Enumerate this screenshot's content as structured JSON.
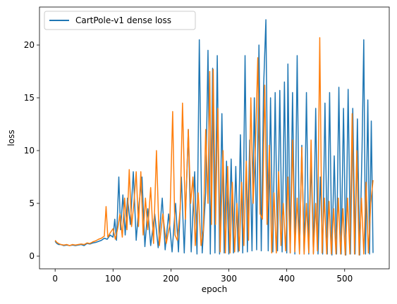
{
  "chart_data": {
    "type": "line",
    "xlabel": "epoch",
    "ylabel": "loss",
    "xlim": [
      -27,
      577
    ],
    "ylim": [
      -1.2,
      23.6
    ],
    "xticks": [
      0,
      100,
      200,
      300,
      400,
      500
    ],
    "yticks": [
      0,
      5,
      10,
      15,
      20
    ],
    "legend": {
      "placement": "top-left",
      "entries": [
        "CartPole-v1 dense  loss"
      ]
    },
    "grid": false,
    "colors": {
      "series_blue": "#1f77b4",
      "series_orange": "#ff7f0e"
    },
    "series": [
      {
        "name": "CartPole-v1 dense  loss",
        "color": "#1f77b4",
        "keypoints": [
          [
            0,
            1.4
          ],
          [
            3,
            1.2
          ],
          [
            6,
            1.1
          ],
          [
            10,
            1.1
          ],
          [
            15,
            1.0
          ],
          [
            20,
            1.05
          ],
          [
            25,
            1.0
          ],
          [
            30,
            1.05
          ],
          [
            35,
            1.0
          ],
          [
            40,
            1.05
          ],
          [
            45,
            1.1
          ],
          [
            50,
            1.0
          ],
          [
            55,
            1.2
          ],
          [
            60,
            1.15
          ],
          [
            65,
            1.25
          ],
          [
            70,
            1.3
          ],
          [
            75,
            1.4
          ],
          [
            80,
            1.5
          ],
          [
            85,
            1.7
          ],
          [
            90,
            1.6
          ],
          [
            95,
            2.0
          ],
          [
            100,
            1.8
          ],
          [
            103,
            3.5
          ],
          [
            106,
            1.5
          ],
          [
            110,
            7.5
          ],
          [
            113,
            2.5
          ],
          [
            117,
            5.8
          ],
          [
            121,
            2.0
          ],
          [
            125,
            5.5
          ],
          [
            130,
            3.0
          ],
          [
            135,
            8.0
          ],
          [
            140,
            1.5
          ],
          [
            145,
            5.0
          ],
          [
            150,
            7.5
          ],
          [
            155,
            0.9
          ],
          [
            160,
            4.5
          ],
          [
            165,
            1.0
          ],
          [
            172,
            4.0
          ],
          [
            178,
            0.8
          ],
          [
            185,
            5.5
          ],
          [
            190,
            0.6
          ],
          [
            196,
            4.0
          ],
          [
            202,
            0.4
          ],
          [
            208,
            5.0
          ],
          [
            213,
            0.4
          ],
          [
            218,
            7.5
          ],
          [
            223,
            0.3
          ],
          [
            230,
            12.0
          ],
          [
            235,
            0.4
          ],
          [
            241,
            8.0
          ],
          [
            245,
            0.2
          ],
          [
            249,
            20.5
          ],
          [
            254,
            0.3
          ],
          [
            260,
            6.0
          ],
          [
            264,
            19.5
          ],
          [
            268,
            0.2
          ],
          [
            272,
            17.8
          ],
          [
            276,
            0.3
          ],
          [
            280,
            19.0
          ],
          [
            284,
            0.2
          ],
          [
            288,
            13.5
          ],
          [
            292,
            0.3
          ],
          [
            296,
            9.0
          ],
          [
            300,
            0.2
          ],
          [
            304,
            9.2
          ],
          [
            308,
            0.3
          ],
          [
            312,
            8.5
          ],
          [
            316,
            0.4
          ],
          [
            320,
            11.5
          ],
          [
            324,
            0.3
          ],
          [
            328,
            19.0
          ],
          [
            332,
            0.4
          ],
          [
            336,
            11.0
          ],
          [
            340,
            0.5
          ],
          [
            344,
            15.0
          ],
          [
            348,
            0.6
          ],
          [
            352,
            20.0
          ],
          [
            356,
            0.5
          ],
          [
            360,
            16.0
          ],
          [
            364,
            22.4
          ],
          [
            368,
            0.5
          ],
          [
            372,
            15.0
          ],
          [
            376,
            0.4
          ],
          [
            380,
            15.5
          ],
          [
            384,
            0.5
          ],
          [
            388,
            15.7
          ],
          [
            392,
            0.4
          ],
          [
            396,
            16.5
          ],
          [
            400,
            0.3
          ],
          [
            402,
            18.2
          ],
          [
            406,
            0.3
          ],
          [
            410,
            15.5
          ],
          [
            414,
            0.2
          ],
          [
            418,
            19.0
          ],
          [
            422,
            0.3
          ],
          [
            426,
            10.5
          ],
          [
            430,
            0.2
          ],
          [
            434,
            15.5
          ],
          [
            438,
            0.2
          ],
          [
            442,
            9.0
          ],
          [
            446,
            0.3
          ],
          [
            450,
            14.0
          ],
          [
            454,
            0.2
          ],
          [
            458,
            7.5
          ],
          [
            462,
            0.2
          ],
          [
            466,
            14.5
          ],
          [
            470,
            0.2
          ],
          [
            474,
            15.5
          ],
          [
            478,
            0.1
          ],
          [
            482,
            9.5
          ],
          [
            486,
            0.2
          ],
          [
            490,
            16.0
          ],
          [
            494,
            0.2
          ],
          [
            498,
            14.0
          ],
          [
            502,
            0.1
          ],
          [
            506,
            15.8
          ],
          [
            510,
            0.2
          ],
          [
            514,
            14.0
          ],
          [
            518,
            0.2
          ],
          [
            522,
            13.0
          ],
          [
            526,
            0.1
          ],
          [
            530,
            10.0
          ],
          [
            533,
            20.5
          ],
          [
            536,
            0.2
          ],
          [
            540,
            14.8
          ],
          [
            543,
            0.2
          ],
          [
            546,
            12.8
          ],
          [
            549,
            0.3
          ]
        ]
      },
      {
        "name": "",
        "color": "#ff7f0e",
        "keypoints": [
          [
            0,
            1.5
          ],
          [
            3,
            1.3
          ],
          [
            6,
            1.2
          ],
          [
            10,
            1.1
          ],
          [
            15,
            1.05
          ],
          [
            20,
            1.1
          ],
          [
            25,
            1.0
          ],
          [
            30,
            1.1
          ],
          [
            35,
            1.05
          ],
          [
            40,
            1.1
          ],
          [
            45,
            1.15
          ],
          [
            50,
            1.1
          ],
          [
            55,
            1.25
          ],
          [
            60,
            1.2
          ],
          [
            65,
            1.35
          ],
          [
            70,
            1.45
          ],
          [
            75,
            1.6
          ],
          [
            80,
            1.7
          ],
          [
            85,
            1.9
          ],
          [
            88,
            4.7
          ],
          [
            91,
            1.8
          ],
          [
            95,
            2.2
          ],
          [
            100,
            2.6
          ],
          [
            104,
            1.6
          ],
          [
            108,
            2.6
          ],
          [
            112,
            4.0
          ],
          [
            116,
            1.8
          ],
          [
            120,
            5.5
          ],
          [
            124,
            2.5
          ],
          [
            128,
            8.2
          ],
          [
            132,
            2.8
          ],
          [
            136,
            5.0
          ],
          [
            140,
            8.0
          ],
          [
            144,
            2.8
          ],
          [
            148,
            8.0
          ],
          [
            152,
            2.0
          ],
          [
            156,
            5.5
          ],
          [
            160,
            2.5
          ],
          [
            165,
            6.5
          ],
          [
            170,
            1.2
          ],
          [
            175,
            10.0
          ],
          [
            180,
            1.0
          ],
          [
            186,
            4.0
          ],
          [
            192,
            1.2
          ],
          [
            198,
            3.0
          ],
          [
            203,
            13.7
          ],
          [
            207,
            2.0
          ],
          [
            211,
            1.5
          ],
          [
            216,
            4.5
          ],
          [
            220,
            14.5
          ],
          [
            225,
            3.5
          ],
          [
            230,
            12.0
          ],
          [
            234,
            5.0
          ],
          [
            238,
            7.5
          ],
          [
            242,
            1.0
          ],
          [
            247,
            6.0
          ],
          [
            252,
            1.0
          ],
          [
            256,
            2.5
          ],
          [
            260,
            12.0
          ],
          [
            264,
            5.0
          ],
          [
            267,
            17.5
          ],
          [
            270,
            3.0
          ],
          [
            273,
            17.7
          ],
          [
            277,
            3.0
          ],
          [
            281,
            14.0
          ],
          [
            285,
            0.4
          ],
          [
            290,
            10.0
          ],
          [
            294,
            0.3
          ],
          [
            298,
            8.5
          ],
          [
            302,
            0.3
          ],
          [
            306,
            7.0
          ],
          [
            310,
            0.4
          ],
          [
            314,
            5.0
          ],
          [
            318,
            0.5
          ],
          [
            322,
            7.0
          ],
          [
            326,
            1.0
          ],
          [
            330,
            9.0
          ],
          [
            334,
            1.5
          ],
          [
            338,
            15.0
          ],
          [
            342,
            5.0
          ],
          [
            346,
            10.5
          ],
          [
            350,
            18.8
          ],
          [
            354,
            4.0
          ],
          [
            358,
            3.5
          ],
          [
            362,
            16.2
          ],
          [
            366,
            3.0
          ],
          [
            370,
            10.5
          ],
          [
            374,
            0.3
          ],
          [
            378,
            6.0
          ],
          [
            382,
            0.3
          ],
          [
            386,
            8.0
          ],
          [
            390,
            1.0
          ],
          [
            394,
            5.0
          ],
          [
            398,
            0.5
          ],
          [
            402,
            7.5
          ],
          [
            406,
            0.3
          ],
          [
            410,
            11.0
          ],
          [
            414,
            0.4
          ],
          [
            418,
            5.5
          ],
          [
            422,
            0.2
          ],
          [
            426,
            10.3
          ],
          [
            430,
            0.2
          ],
          [
            434,
            5.0
          ],
          [
            438,
            0.3
          ],
          [
            442,
            11.0
          ],
          [
            446,
            0.2
          ],
          [
            450,
            5.0
          ],
          [
            453,
            0.5
          ],
          [
            457,
            20.7
          ],
          [
            461,
            0.3
          ],
          [
            465,
            5.5
          ],
          [
            469,
            0.2
          ],
          [
            473,
            5.2
          ],
          [
            477,
            0.2
          ],
          [
            481,
            4.5
          ],
          [
            485,
            0.2
          ],
          [
            489,
            5.5
          ],
          [
            493,
            0.2
          ],
          [
            497,
            4.5
          ],
          [
            501,
            0.1
          ],
          [
            505,
            5.5
          ],
          [
            509,
            0.2
          ],
          [
            513,
            13.5
          ],
          [
            517,
            0.2
          ],
          [
            521,
            10.0
          ],
          [
            525,
            0.1
          ],
          [
            529,
            5.5
          ],
          [
            533,
            0.2
          ],
          [
            537,
            7.0
          ],
          [
            541,
            0.3
          ],
          [
            545,
            5.0
          ],
          [
            549,
            7.2
          ]
        ]
      }
    ]
  }
}
